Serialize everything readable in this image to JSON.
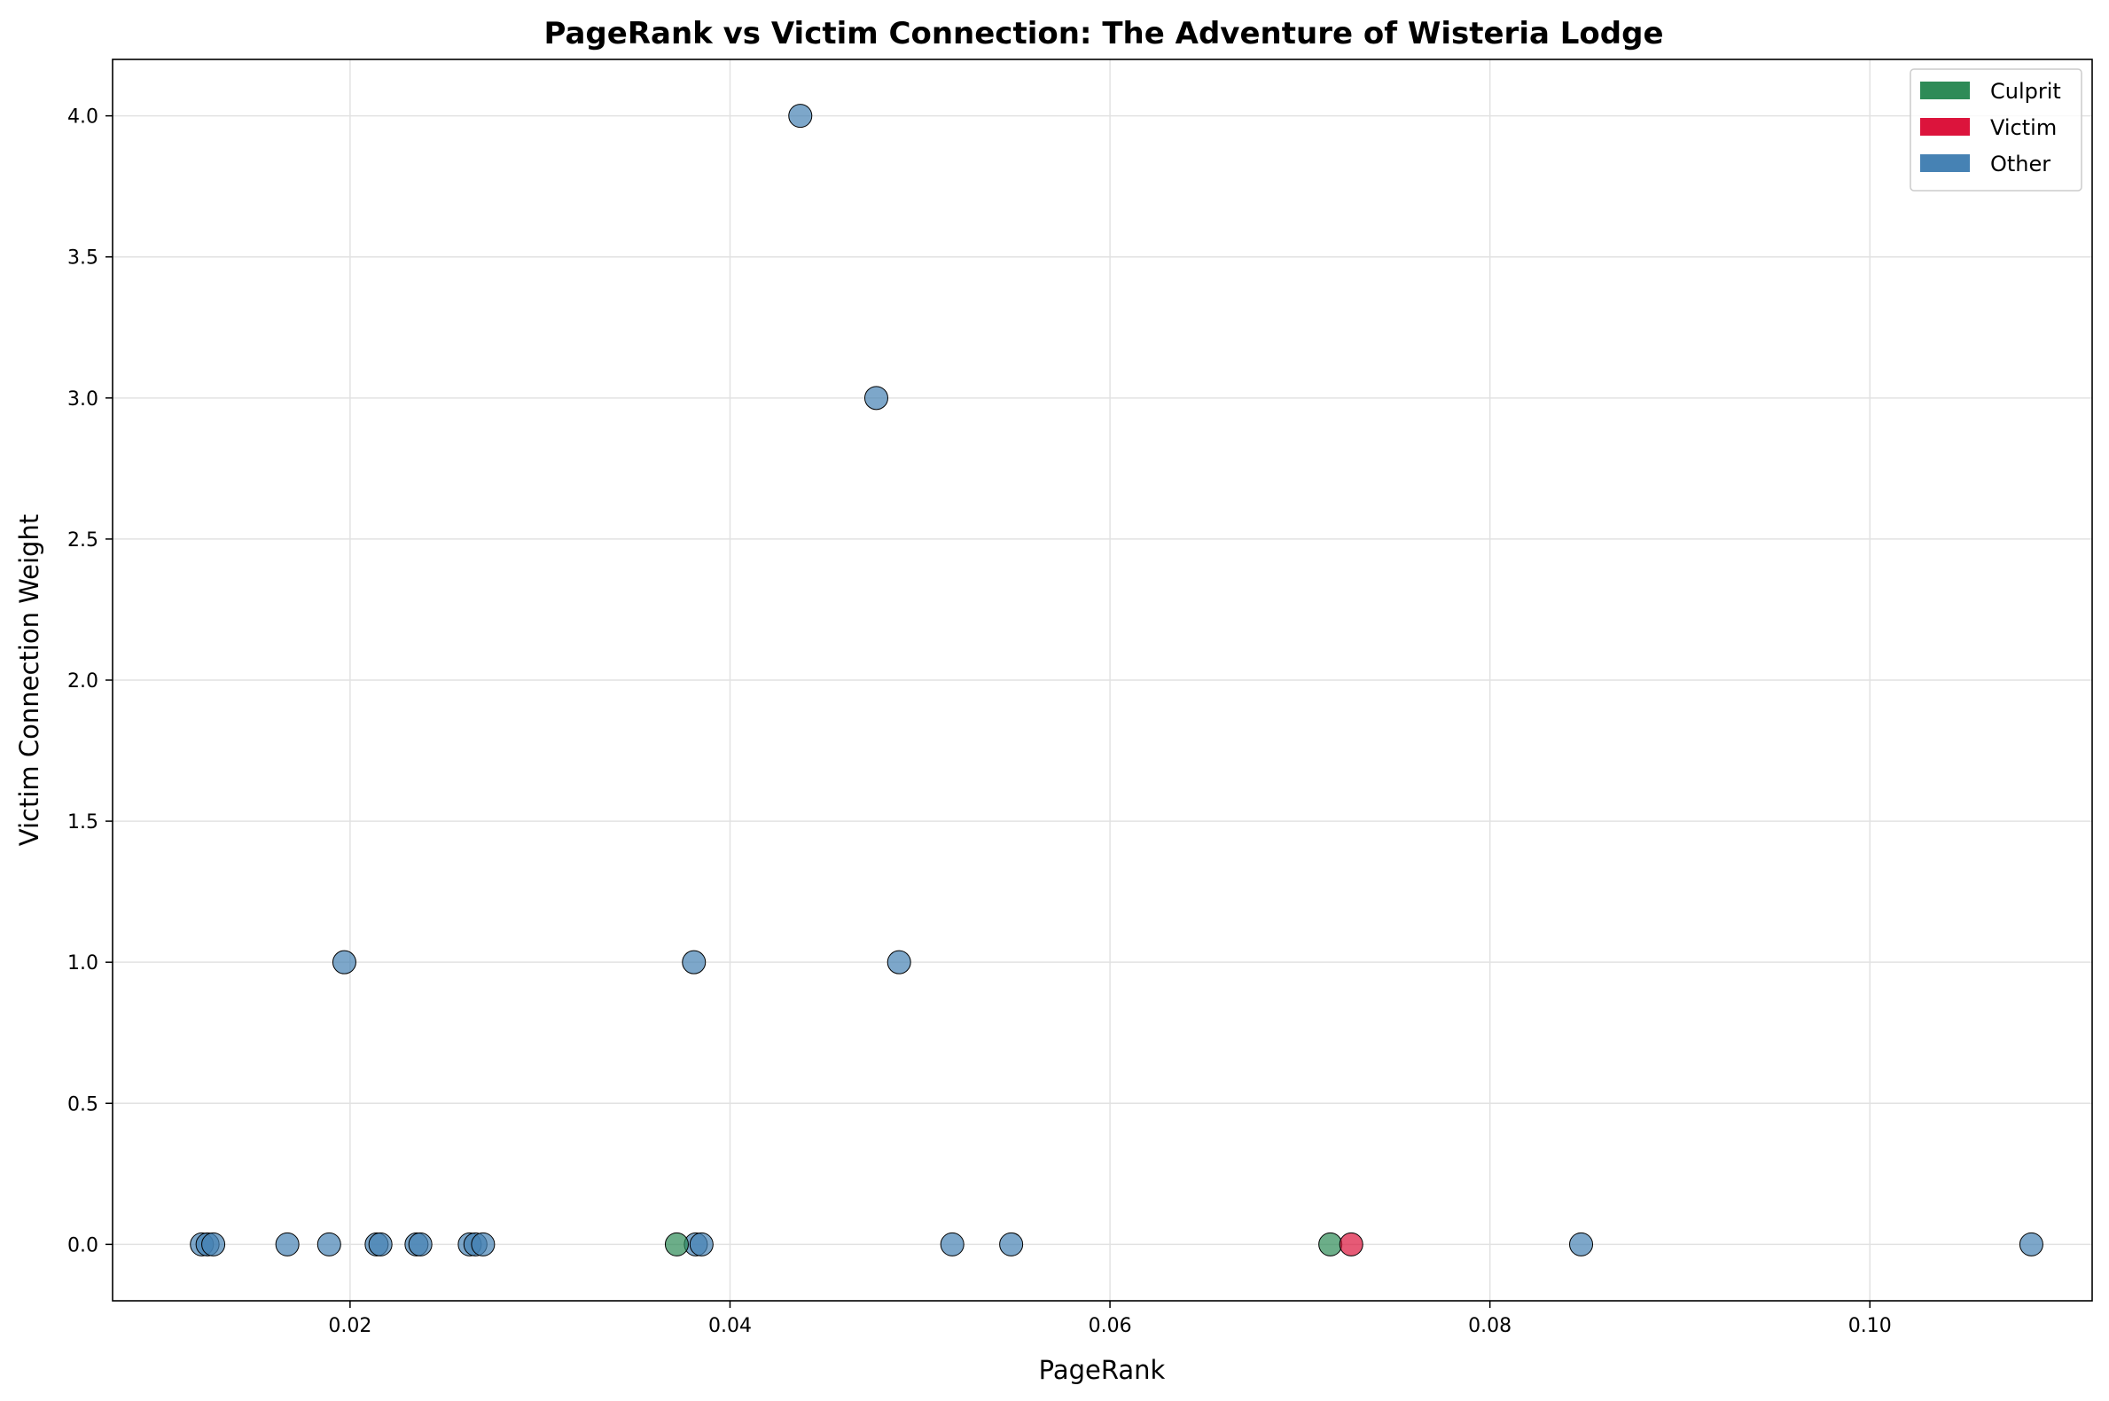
{
  "chart_data": {
    "type": "scatter",
    "title": "PageRank vs Victim Connection: The Adventure of Wisteria Lodge",
    "xlabel": "PageRank",
    "ylabel": "Victim Connection Weight",
    "xlim": [
      0.0075,
      0.1117
    ],
    "ylim": [
      -0.2,
      4.2
    ],
    "xticks": [
      0.02,
      0.04,
      0.06,
      0.08,
      0.1
    ],
    "xtick_labels": [
      "0.02",
      "0.04",
      "0.06",
      "0.08",
      "0.10"
    ],
    "yticks": [
      0.0,
      0.5,
      1.0,
      1.5,
      2.0,
      2.5,
      3.0,
      3.5,
      4.0
    ],
    "ytick_labels": [
      "0.0",
      "0.5",
      "1.0",
      "1.5",
      "2.0",
      "2.5",
      "3.0",
      "3.5",
      "4.0"
    ],
    "grid": true,
    "legend_position": "top-right",
    "legend": [
      {
        "label": "Culprit",
        "color": "#2e8b57"
      },
      {
        "label": "Victim",
        "color": "#dc143c"
      },
      {
        "label": "Other",
        "color": "#4682b4"
      }
    ],
    "series": [
      {
        "name": "Other",
        "color": "#4682b4",
        "points": [
          {
            "x": 0.0437,
            "y": 4.0
          },
          {
            "x": 0.0477,
            "y": 3.0
          },
          {
            "x": 0.0197,
            "y": 1.0
          },
          {
            "x": 0.0381,
            "y": 1.0
          },
          {
            "x": 0.0489,
            "y": 1.0
          },
          {
            "x": 0.0122,
            "y": 0.0
          },
          {
            "x": 0.0125,
            "y": 0.0
          },
          {
            "x": 0.0128,
            "y": 0.0
          },
          {
            "x": 0.0167,
            "y": 0.0
          },
          {
            "x": 0.0189,
            "y": 0.0
          },
          {
            "x": 0.0214,
            "y": 0.0
          },
          {
            "x": 0.0216,
            "y": 0.0
          },
          {
            "x": 0.0235,
            "y": 0.0
          },
          {
            "x": 0.0237,
            "y": 0.0
          },
          {
            "x": 0.0263,
            "y": 0.0
          },
          {
            "x": 0.0266,
            "y": 0.0
          },
          {
            "x": 0.027,
            "y": 0.0
          },
          {
            "x": 0.0382,
            "y": 0.0
          },
          {
            "x": 0.0385,
            "y": 0.0
          },
          {
            "x": 0.0517,
            "y": 0.0
          },
          {
            "x": 0.0548,
            "y": 0.0
          },
          {
            "x": 0.0848,
            "y": 0.0
          },
          {
            "x": 0.1085,
            "y": 0.0
          }
        ]
      },
      {
        "name": "Culprit",
        "color": "#2e8b57",
        "points": [
          {
            "x": 0.0372,
            "y": 0.0
          },
          {
            "x": 0.0716,
            "y": 0.0
          }
        ]
      },
      {
        "name": "Victim",
        "color": "#dc143c",
        "points": [
          {
            "x": 0.0727,
            "y": 0.0
          }
        ]
      }
    ]
  }
}
